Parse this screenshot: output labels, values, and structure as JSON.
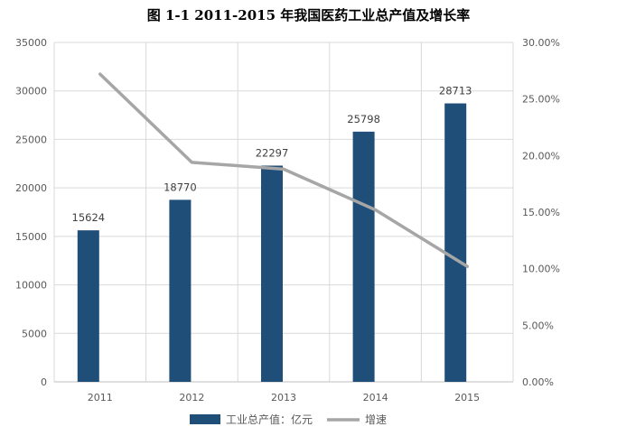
{
  "chart_data": {
    "type": "bar",
    "title": "图 1-1  2011-2015 年我国医药工业总产值及增长率",
    "categories": [
      "2011",
      "2012",
      "2013",
      "2014",
      "2015"
    ],
    "series": [
      {
        "name": "工业总产值：亿元",
        "type": "bar",
        "axis": "left",
        "values": [
          15624,
          18770,
          22297,
          25798,
          28713
        ],
        "color": "#1f4e79"
      },
      {
        "name": "增速",
        "type": "line",
        "axis": "right",
        "values": [
          0.272,
          0.194,
          0.188,
          0.152,
          0.102
        ],
        "color": "#a6a6a6"
      }
    ],
    "y_left": {
      "range": [
        0,
        35000
      ],
      "ticks": [
        "0",
        "5000",
        "10000",
        "15000",
        "20000",
        "25000",
        "30000",
        "35000"
      ]
    },
    "y_right": {
      "range": [
        0,
        0.3
      ],
      "ticks": [
        "0.00%",
        "5.00%",
        "10.00%",
        "15.00%",
        "20.00%",
        "25.00%",
        "30.00%"
      ]
    },
    "data_labels": [
      "15624",
      "18770",
      "22297",
      "25798",
      "28713"
    ],
    "grid": true,
    "legend_position": "bottom"
  }
}
